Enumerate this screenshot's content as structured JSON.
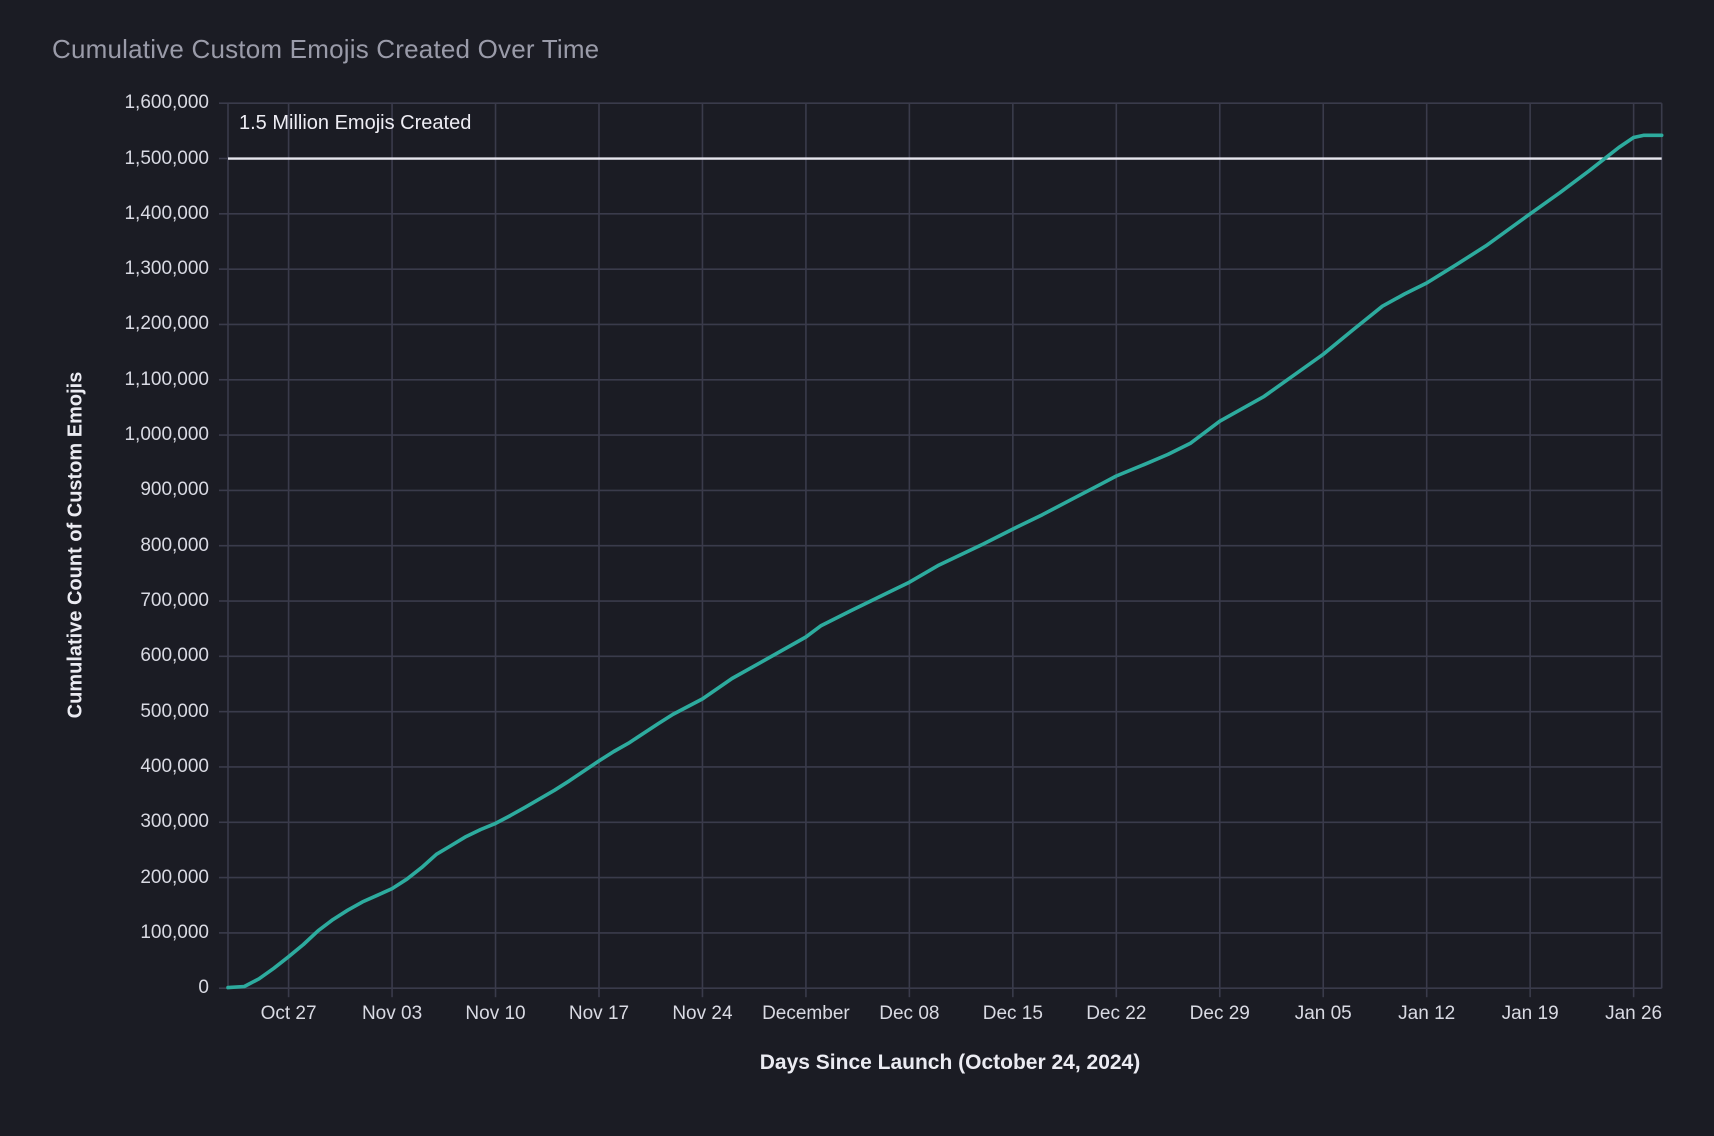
{
  "chart": {
    "title": "Cumulative Custom Emojis Created Over Time",
    "xlabel": "Days Since Launch (October 24, 2024)",
    "ylabel": "Cumulative Count of Custom Emojis",
    "annotation": "1.5 Million Emojis Created"
  },
  "colors": {
    "background": "#1b1c24",
    "gridline": "#3a3b4b",
    "line": "#2dab9e",
    "reference_line": "#e7e6ee",
    "title_text": "#9a9ba9",
    "tick_text": "#d9dae3",
    "axis_title_text": "#ebebf2"
  },
  "chart_data": {
    "type": "line",
    "title": "Cumulative Custom Emojis Created Over Time",
    "xlabel": "Days Since Launch (October 24, 2024)",
    "ylabel": "Cumulative Count of Custom Emojis",
    "grid": true,
    "legend": "none",
    "y_domain": [
      0,
      1600000
    ],
    "y_tick_step": 100000,
    "y_tick_labels": [
      "0",
      "100,000",
      "200,000",
      "300,000",
      "400,000",
      "500,000",
      "600,000",
      "700,000",
      "800,000",
      "900,000",
      "1,000,000",
      "1,100,000",
      "1,200,000",
      "1,300,000",
      "1,400,000",
      "1,500,000",
      "1,600,000"
    ],
    "x_domain_days": [
      -1.1,
      95.9
    ],
    "x_ticks": [
      {
        "label": "Oct 27",
        "day": 3
      },
      {
        "label": "Nov 03",
        "day": 10
      },
      {
        "label": "Nov 10",
        "day": 17
      },
      {
        "label": "Nov 17",
        "day": 24
      },
      {
        "label": "Nov 24",
        "day": 31
      },
      {
        "label": "December",
        "day": 38
      },
      {
        "label": "Dec 08",
        "day": 45
      },
      {
        "label": "Dec 15",
        "day": 52
      },
      {
        "label": "Dec 22",
        "day": 59
      },
      {
        "label": "Dec 29",
        "day": 66
      },
      {
        "label": "Jan 05",
        "day": 73
      },
      {
        "label": "Jan 12",
        "day": 80
      },
      {
        "label": "Jan 19",
        "day": 87
      },
      {
        "label": "Jan 26",
        "day": 94
      }
    ],
    "reference_line": {
      "value": 1500000,
      "label": "1.5 Million Emojis Created"
    },
    "series": [
      {
        "name": "Cumulative Custom Emojis",
        "points_day_value": [
          [
            -1.1,
            1000
          ],
          [
            0,
            3000
          ],
          [
            1,
            17000
          ],
          [
            2,
            36000
          ],
          [
            3,
            57000
          ],
          [
            4,
            79000
          ],
          [
            5,
            104000
          ],
          [
            6,
            124000
          ],
          [
            7,
            141000
          ],
          [
            8,
            156000
          ],
          [
            9,
            168000
          ],
          [
            10,
            180000
          ],
          [
            11,
            197000
          ],
          [
            12,
            218000
          ],
          [
            13,
            242000
          ],
          [
            14,
            258000
          ],
          [
            15,
            274000
          ],
          [
            16,
            287000
          ],
          [
            17,
            298000
          ],
          [
            18,
            312000
          ],
          [
            19,
            327000
          ],
          [
            21,
            358000
          ],
          [
            22,
            375000
          ],
          [
            24,
            411000
          ],
          [
            25,
            428000
          ],
          [
            26,
            443000
          ],
          [
            28,
            478000
          ],
          [
            29,
            495000
          ],
          [
            31,
            523000
          ],
          [
            33,
            560000
          ],
          [
            35,
            590000
          ],
          [
            38,
            635000
          ],
          [
            39,
            655000
          ],
          [
            41,
            682000
          ],
          [
            45,
            734000
          ],
          [
            47,
            765000
          ],
          [
            50,
            803000
          ],
          [
            52,
            830000
          ],
          [
            54,
            856000
          ],
          [
            56,
            884000
          ],
          [
            58,
            912000
          ],
          [
            59,
            926000
          ],
          [
            61,
            948000
          ],
          [
            62.5,
            965000
          ],
          [
            64,
            985000
          ],
          [
            66,
            1025000
          ],
          [
            68,
            1055000
          ],
          [
            69,
            1070000
          ],
          [
            71,
            1108000
          ],
          [
            73,
            1146000
          ],
          [
            75,
            1190000
          ],
          [
            77,
            1233000
          ],
          [
            78.5,
            1255000
          ],
          [
            80,
            1275000
          ],
          [
            82,
            1308000
          ],
          [
            84,
            1342000
          ],
          [
            87,
            1400000
          ],
          [
            89,
            1438000
          ],
          [
            91,
            1478000
          ],
          [
            93,
            1520000
          ],
          [
            94,
            1538000
          ],
          [
            94.7,
            1542000
          ],
          [
            95.9,
            1542000
          ]
        ]
      }
    ]
  }
}
